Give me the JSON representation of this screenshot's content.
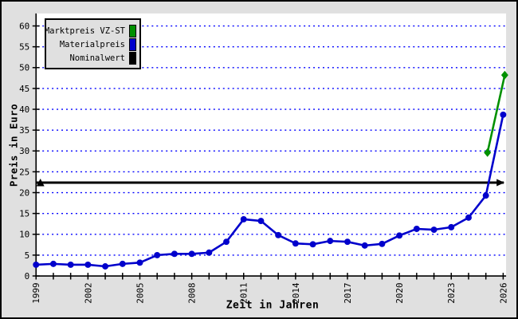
{
  "figure": {
    "background_color": "#e0e0e0",
    "plot_background_color": "#ffffff",
    "axis_color": "#000000"
  },
  "chart_data": {
    "type": "line",
    "title": "",
    "xlabel": "Zeit in Jahren",
    "ylabel": "Preis in Euro",
    "xlim": [
      1999,
      2026.17
    ],
    "ylim": [
      0,
      63
    ],
    "y_ticks": [
      0,
      5,
      10,
      15,
      20,
      25,
      30,
      35,
      40,
      45,
      50,
      55,
      60
    ],
    "x_minor_ticks": [
      1999,
      2000,
      2001,
      2002,
      2003,
      2004,
      2005,
      2006,
      2007,
      2008,
      2009,
      2010,
      2011,
      2012,
      2013,
      2014,
      2015,
      2016,
      2017,
      2018,
      2019,
      2020,
      2021,
      2022,
      2023,
      2024,
      2025,
      2026
    ],
    "x_major_ticks": [
      1999,
      2002,
      2005,
      2008,
      2011,
      2014,
      2017,
      2020,
      2023,
      2026
    ],
    "grid": {
      "orientation": "horizontal",
      "style": "dotted",
      "color": "#0000ff"
    },
    "legend_position": "top-left",
    "series": [
      {
        "name": "Marktpreis VZ-ST",
        "color": "#009000",
        "marker": "diamond",
        "x": [
          2025,
          2026
        ],
        "values": [
          29.6,
          48.2
        ]
      },
      {
        "name": "Materialpreis",
        "color": "#0000cc",
        "marker": "circle",
        "x": [
          1999,
          2000,
          2001,
          2002,
          2003,
          2004,
          2005,
          2006,
          2007,
          2008,
          2009,
          2010,
          2011,
          2012,
          2013,
          2014,
          2015,
          2016,
          2017,
          2018,
          2019,
          2020,
          2021,
          2022,
          2023,
          2024,
          2025,
          2026
        ],
        "values": [
          2.7,
          2.9,
          2.7,
          2.7,
          2.3,
          2.9,
          3.2,
          5.0,
          5.3,
          5.3,
          5.6,
          8.2,
          13.6,
          13.2,
          9.8,
          7.8,
          7.6,
          8.4,
          8.2,
          7.3,
          7.7,
          9.7,
          11.3,
          11.1,
          11.7,
          14.0,
          19.3,
          38.7
        ]
      },
      {
        "name": "Nominalwert",
        "color": "#000000",
        "marker": "arrow-ends",
        "line_type": "hline",
        "value": 22.4
      }
    ]
  }
}
